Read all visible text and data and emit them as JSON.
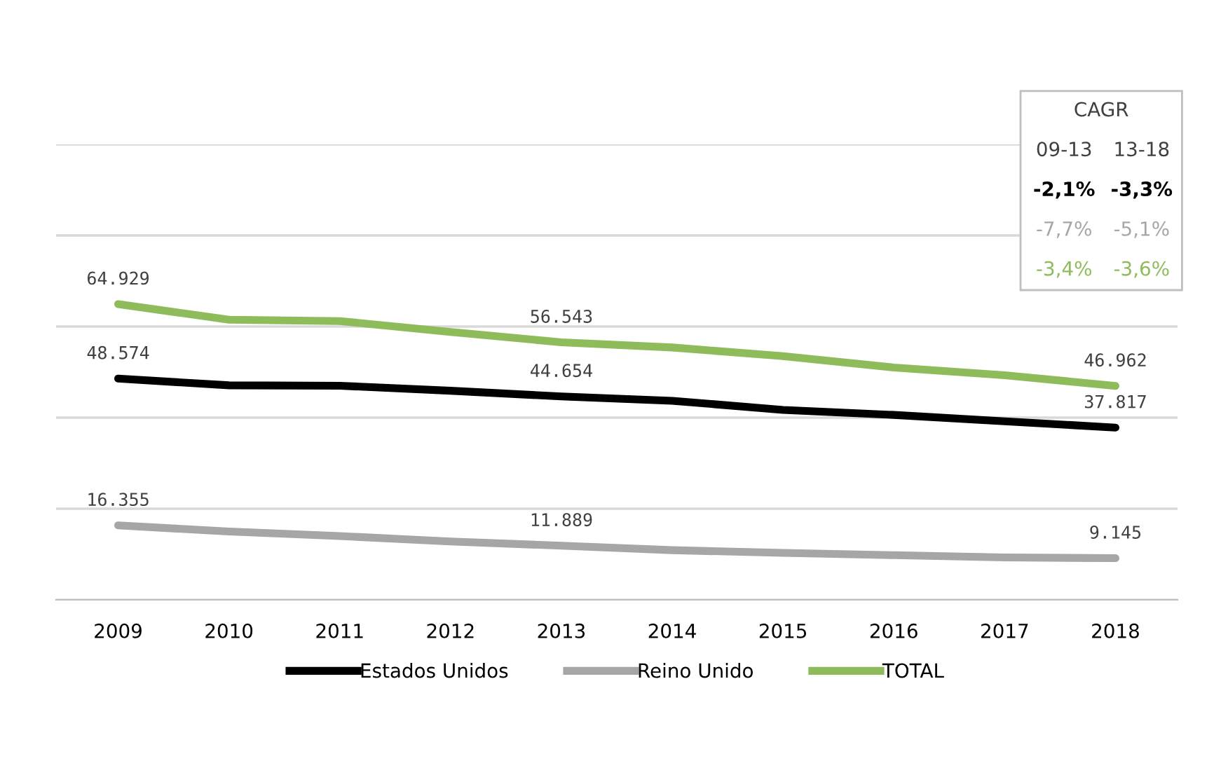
{
  "chart_data": {
    "type": "line",
    "categories": [
      "2009",
      "2010",
      "2011",
      "2012",
      "2013",
      "2014",
      "2015",
      "2016",
      "2017",
      "2018"
    ],
    "series": [
      {
        "name": "Estados Unidos",
        "color": "#000000",
        "values": [
          48574,
          47100,
          47000,
          45900,
          44654,
          43700,
          41700,
          40600,
          39200,
          37817
        ],
        "value_labels": [
          "48.574",
          null,
          null,
          null,
          "44.654",
          null,
          null,
          null,
          null,
          "37.817"
        ]
      },
      {
        "name": "Reino Unido",
        "color": "#a6a6a6",
        "values": [
          16355,
          15000,
          14000,
          12800,
          11889,
          10900,
          10300,
          9800,
          9300,
          9145
        ],
        "value_labels": [
          "16.355",
          null,
          null,
          null,
          "11.889",
          null,
          null,
          null,
          null,
          "9.145"
        ]
      },
      {
        "name": "TOTAL",
        "color": "#8fbc5a",
        "values": [
          64929,
          61500,
          61200,
          58800,
          56543,
          55400,
          53500,
          51000,
          49300,
          46962
        ],
        "value_labels": [
          "64.929",
          null,
          null,
          null,
          "56.543",
          null,
          null,
          null,
          null,
          "46.962"
        ]
      }
    ],
    "ylim": [
      0,
      100000
    ],
    "yticks": [
      {
        "value": 0,
        "label": null
      },
      {
        "value": 20000,
        "label": null
      },
      {
        "value": 40000,
        "label": null
      },
      {
        "value": 60000,
        "label": null
      },
      {
        "value": 80000,
        "label": null
      },
      {
        "value": 100000,
        "label": null
      }
    ],
    "grid": "y",
    "tick_labels": "x",
    "legend": "bottom",
    "marker": "none",
    "line_style": "solid",
    "annotations": [
      "CAGR",
      "09-13",
      "13-18",
      "-2,1%",
      "-3,3%",
      "-7,7%",
      "-5,1%",
      "-3,4%",
      "-3,6%"
    ]
  }
}
